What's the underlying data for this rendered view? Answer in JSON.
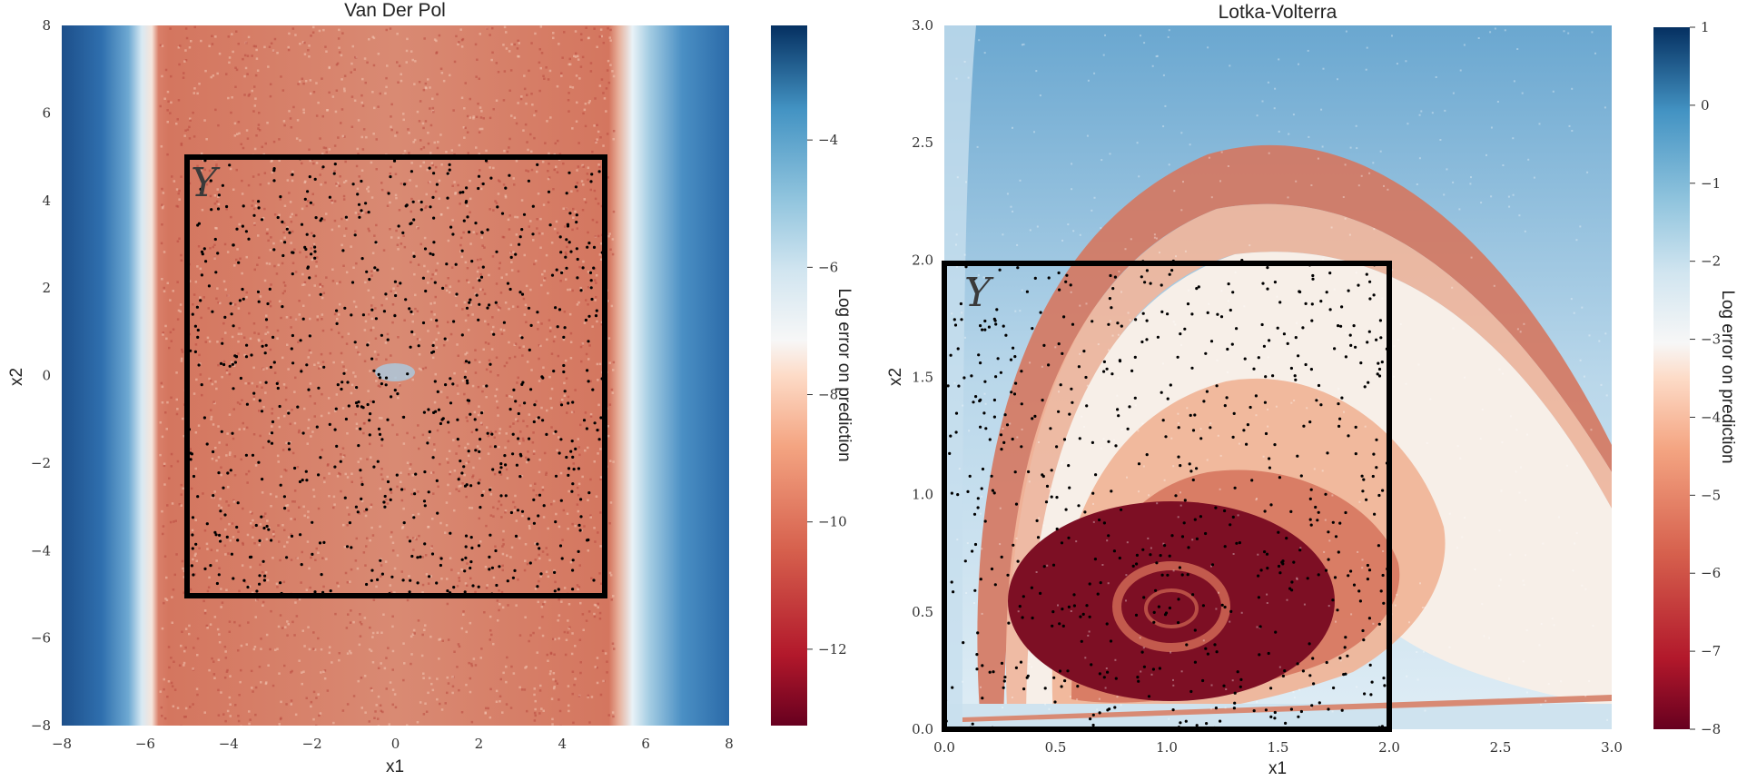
{
  "colors": {
    "error_low": "#67001f",
    "error_mid": "#f7f7f7",
    "error_high": "#053061",
    "box": "#000000",
    "samples": "#000000"
  },
  "chart_data": [
    {
      "type": "heatmap",
      "title": "Van Der Pol",
      "xlabel": "x1",
      "ylabel": "x2",
      "xlim": [
        -8,
        8
      ],
      "ylim": [
        -8,
        8
      ],
      "xticks": [
        -8,
        -6,
        -4,
        -2,
        0,
        2,
        4,
        6,
        8
      ],
      "yticks": [
        -8,
        -6,
        -4,
        -2,
        0,
        2,
        4,
        6,
        8
      ],
      "xtick_labels": [
        "−8",
        "−6",
        "−4",
        "−2",
        "0",
        "2",
        "4",
        "6",
        "8"
      ],
      "ytick_labels": [
        "−8",
        "−6",
        "−4",
        "−2",
        "0",
        "2",
        "4",
        "6",
        "8"
      ],
      "colorbar": {
        "label": "Log error on prediction",
        "range": [
          -13.2,
          -2.2
        ],
        "ticks": [
          -12,
          -10,
          -8,
          -6,
          -4
        ],
        "tick_labels": [
          "−12",
          "−10",
          "−8",
          "−6",
          "−4"
        ],
        "colormap": "RdBu"
      },
      "training_region": {
        "label": "Y",
        "x": [
          -5,
          5
        ],
        "y": [
          -5,
          5
        ]
      },
      "error_bands": [
        {
          "x_from": -8,
          "x_to": -5.8,
          "log_error": -3.5
        },
        {
          "x_from": -5.8,
          "x_to": 5.5,
          "log_error": -11
        },
        {
          "x_from": 5.5,
          "x_to": 8,
          "log_error": -3.5
        }
      ],
      "sample_count": 700
    },
    {
      "type": "heatmap",
      "title": "Lotka-Volterra",
      "xlabel": "x1",
      "ylabel": "x2",
      "xlim": [
        0,
        3
      ],
      "ylim": [
        0,
        3
      ],
      "xticks": [
        0,
        0.5,
        1,
        1.5,
        2,
        2.5,
        3
      ],
      "yticks": [
        0,
        0.5,
        1,
        1.5,
        2,
        2.5,
        3
      ],
      "xtick_labels": [
        "0.0",
        "0.5",
        "1.0",
        "1.5",
        "2.0",
        "2.5",
        "3.0"
      ],
      "ytick_labels": [
        "0.0",
        "0.5",
        "1.0",
        "1.5",
        "2.0",
        "2.5",
        "3.0"
      ],
      "colorbar": {
        "label": "Log error on prediction",
        "range": [
          -8,
          1
        ],
        "ticks": [
          -8,
          -7,
          -6,
          -5,
          -4,
          -3,
          -2,
          -1,
          0,
          1
        ],
        "tick_labels": [
          "−8",
          "−7",
          "−6",
          "−5",
          "−4",
          "−3",
          "−2",
          "−1",
          "0",
          "1"
        ],
        "colormap": "RdBu"
      },
      "training_region": {
        "label": "Y",
        "x": [
          0,
          2
        ],
        "y": [
          0,
          2
        ]
      },
      "low_error_center": [
        1.0,
        0.5
      ],
      "sample_count": 600
    }
  ]
}
